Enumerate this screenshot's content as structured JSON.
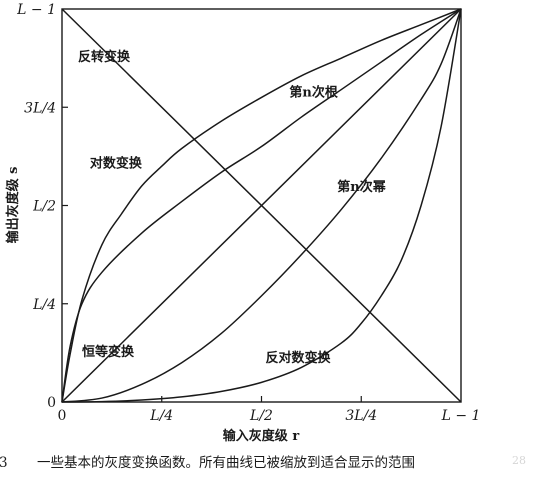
{
  "chart_data": {
    "type": "line",
    "xlabel": "输入灰度级 r",
    "ylabel": "输出灰度级 s",
    "xlim": [
      0,
      1
    ],
    "ylim": [
      0,
      1
    ],
    "xticks": [
      {
        "value": 0,
        "label": "0"
      },
      {
        "value": 0.25,
        "label": "L/4"
      },
      {
        "value": 0.5,
        "label": "L/2"
      },
      {
        "value": 0.75,
        "label": "3L/4"
      },
      {
        "value": 1,
        "label": "L − 1"
      }
    ],
    "yticks": [
      {
        "value": 0,
        "label": "0"
      },
      {
        "value": 0.25,
        "label": "L/4"
      },
      {
        "value": 0.5,
        "label": "L/2"
      },
      {
        "value": 0.75,
        "label": "3L/4"
      },
      {
        "value": 1,
        "label": "L − 1"
      }
    ],
    "grid": false,
    "series": [
      {
        "name": "反转变换",
        "label_at": [
          0.04,
          0.88
        ],
        "x": [
          0,
          1
        ],
        "y": [
          1,
          0
        ]
      },
      {
        "name": "恒等变换",
        "label_at": [
          0.05,
          0.13
        ],
        "x": [
          0,
          1
        ],
        "y": [
          0,
          1
        ]
      },
      {
        "name": "对数变换",
        "label_at": [
          0.07,
          0.61
        ],
        "x": [
          0,
          0.02,
          0.05,
          0.1,
          0.15,
          0.2,
          0.25,
          0.3,
          0.4,
          0.5,
          0.6,
          0.7,
          0.8,
          0.9,
          1.0
        ],
        "y": [
          0,
          0.12,
          0.26,
          0.4,
          0.48,
          0.55,
          0.6,
          0.645,
          0.715,
          0.775,
          0.83,
          0.875,
          0.92,
          0.96,
          1.0
        ]
      },
      {
        "name": "第n次根",
        "label_at": [
          0.57,
          0.79
        ],
        "x": [
          0,
          0.02,
          0.05,
          0.1,
          0.2,
          0.3,
          0.4,
          0.5,
          0.6,
          0.7,
          0.8,
          0.9,
          1.0
        ],
        "y": [
          0,
          0.14,
          0.25,
          0.33,
          0.43,
          0.51,
          0.585,
          0.65,
          0.725,
          0.795,
          0.865,
          0.935,
          1.0
        ]
      },
      {
        "name": "第n次幂",
        "label_at": [
          0.69,
          0.55
        ],
        "x": [
          0,
          0.1,
          0.2,
          0.3,
          0.4,
          0.5,
          0.6,
          0.7,
          0.8,
          0.9,
          0.95,
          1.0
        ],
        "y": [
          0,
          0.01,
          0.045,
          0.1,
          0.175,
          0.27,
          0.375,
          0.49,
          0.62,
          0.77,
          0.86,
          1.0
        ]
      },
      {
        "name": "反对数变换",
        "label_at": [
          0.51,
          0.115
        ],
        "x": [
          0,
          0.1,
          0.2,
          0.3,
          0.4,
          0.5,
          0.6,
          0.7,
          0.75,
          0.8,
          0.85,
          0.9,
          0.95,
          1.0
        ],
        "y": [
          0,
          0.001,
          0.005,
          0.013,
          0.027,
          0.05,
          0.088,
          0.15,
          0.2,
          0.27,
          0.36,
          0.5,
          0.7,
          1.0
        ]
      }
    ]
  },
  "caption": {
    "number": "3",
    "text": "一些基本的灰度变换函数。所有曲线已被缩放到适合显示的范围"
  },
  "watermark": "28"
}
